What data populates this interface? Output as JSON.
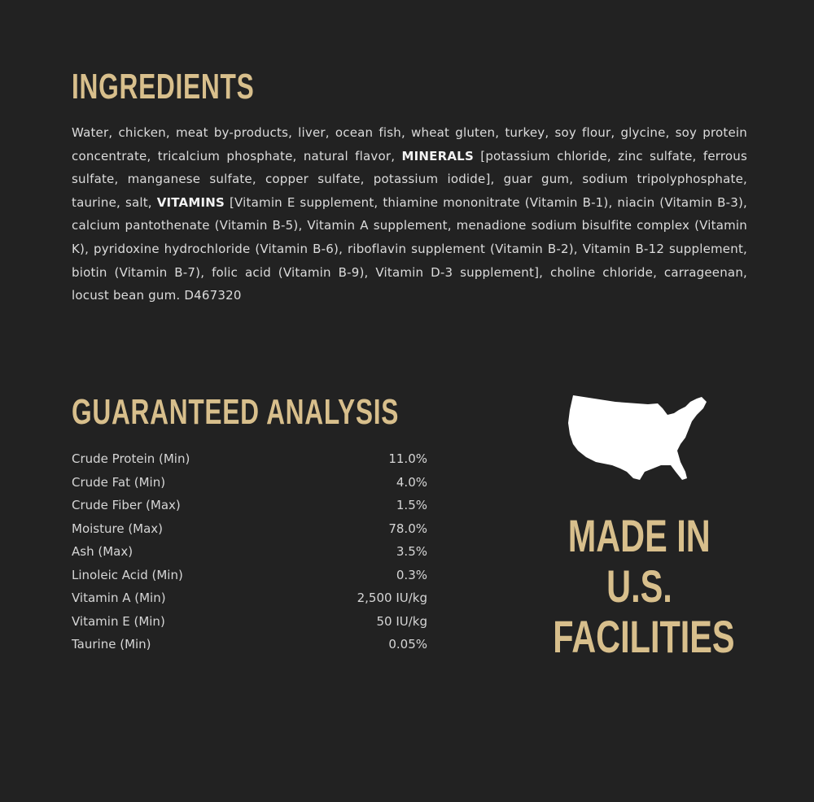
{
  "ingredients": {
    "title": "INGREDIENTS",
    "text_1": "Water, chicken, meat by-products, liver, ocean fish, wheat gluten, turkey, soy flour, glycine, soy protein concentrate, tricalcium phosphate, natural flavor, ",
    "minerals_label": "MINERALS",
    "text_2": " [potassium chloride, zinc sulfate, ferrous sulfate, manganese sulfate, copper sulfate, potassium iodide], guar gum, sodium tripolyphosphate, taurine, salt, ",
    "vitamins_label": "VITAMINS",
    "text_3": " [Vitamin E supplement, thiamine mononitrate (Vitamin B-1), niacin (Vitamin B-3), calcium pantothenate (Vitamin B-5), Vitamin A supplement, menadione sodium bisulfite complex (Vitamin K), pyridoxine hydrochloride (Vitamin B-6), riboflavin supplement (Vitamin B-2), Vitamin B-12 supplement, biotin (Vitamin B-7), folic acid (Vitamin B-9), Vitamin D-3 supplement], choline chloride, carrageenan, locust bean gum. D467320"
  },
  "analysis": {
    "title": "GUARANTEED ANALYSIS",
    "rows": [
      {
        "label": "Crude Protein (Min)",
        "value": "11.0%"
      },
      {
        "label": "Crude Fat (Min)",
        "value": "4.0%"
      },
      {
        "label": "Crude Fiber (Max)",
        "value": "1.5%"
      },
      {
        "label": "Moisture (Max)",
        "value": "78.0%"
      },
      {
        "label": "Ash (Max)",
        "value": "3.5%"
      },
      {
        "label": "Linoleic Acid (Min)",
        "value": "0.3%"
      },
      {
        "label": "Vitamin A (Min)",
        "value": "2,500 IU/kg"
      },
      {
        "label": "Vitamin E (Min)",
        "value": "50 IU/kg"
      },
      {
        "label": "Taurine (Min)",
        "value": "0.05%"
      }
    ]
  },
  "made_in": {
    "icon": "usa-map-icon",
    "line_1": "MADE IN",
    "line_2": "U.S.",
    "line_3": "FACILITIES"
  },
  "colors": {
    "background": "#222222",
    "accent": "#d8bf8c",
    "text": "#dcdcdc"
  }
}
